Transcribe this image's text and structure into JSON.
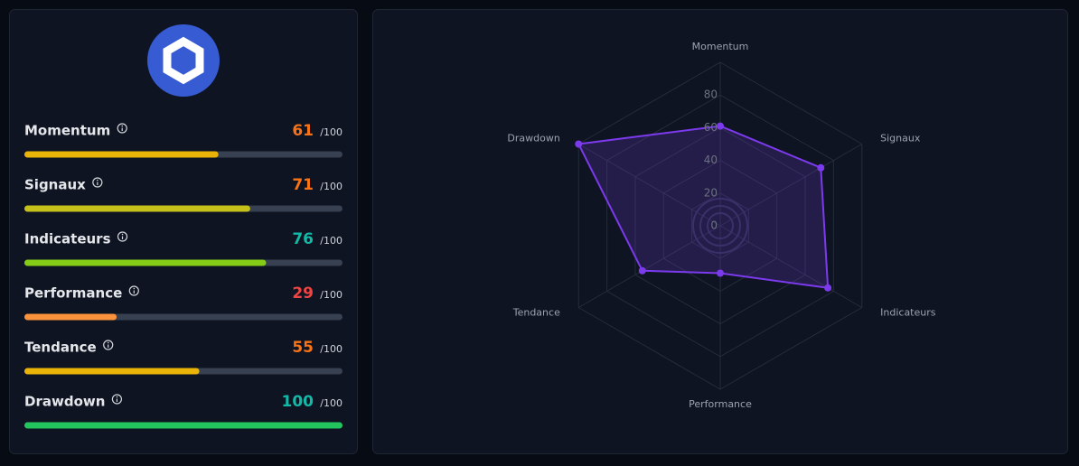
{
  "scores": {
    "max": 100,
    "max_label": "/100",
    "items": [
      {
        "name": "Momentum",
        "value": 61,
        "value_color": "#f97316",
        "bar_color": "#eab308"
      },
      {
        "name": "Signaux",
        "value": 71,
        "value_color": "#f97316",
        "bar_color": "#c5c11a"
      },
      {
        "name": "Indicateurs",
        "value": 76,
        "value_color": "#14b8a6",
        "bar_color": "#84cc16"
      },
      {
        "name": "Performance",
        "value": 29,
        "value_color": "#ef4444",
        "bar_color": "#fb923c"
      },
      {
        "name": "Tendance",
        "value": 55,
        "value_color": "#f97316",
        "bar_color": "#eab308"
      },
      {
        "name": "Drawdown",
        "value": 100,
        "value_color": "#14b8a6",
        "bar_color": "#22c55e"
      }
    ]
  },
  "radar": {
    "type": "radar",
    "categories": [
      "Momentum",
      "Signaux",
      "Indicateurs",
      "Performance",
      "Tendance",
      "Drawdown"
    ],
    "values": [
      61,
      71,
      76,
      29,
      55,
      100
    ],
    "color": "#7c3aed",
    "rlim": [
      0,
      100
    ],
    "rticks": [
      0,
      20,
      40,
      60,
      80
    ],
    "grid": true
  }
}
